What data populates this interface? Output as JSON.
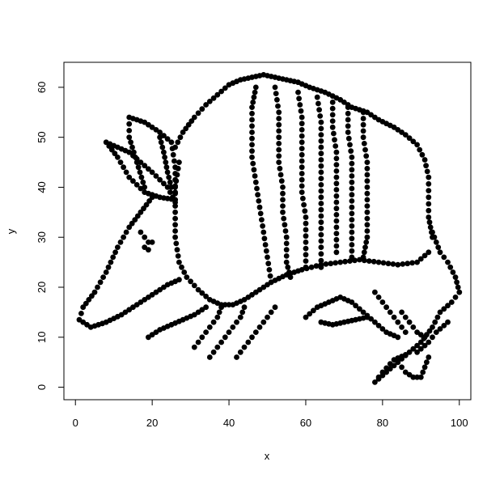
{
  "chart_data": {
    "type": "scatter",
    "title": "",
    "xlabel": "x",
    "ylabel": "y",
    "xlim": [
      -3,
      103
    ],
    "ylim": [
      -2.5,
      65
    ],
    "xticks": [
      0,
      20,
      40,
      60,
      80,
      100
    ],
    "yticks": [
      0,
      10,
      20,
      30,
      40,
      50,
      60
    ],
    "grid": false,
    "legend": "none",
    "marker_color": "#000000",
    "paths": [
      [
        [
          20,
          38
        ],
        [
          17,
          35
        ],
        [
          14,
          32
        ],
        [
          11,
          28
        ],
        [
          8,
          23
        ],
        [
          5,
          19
        ],
        [
          2,
          16
        ],
        [
          1,
          13.5
        ],
        [
          4,
          12
        ],
        [
          8,
          13
        ],
        [
          12,
          14.5
        ],
        [
          16,
          16.5
        ],
        [
          20,
          18.5
        ],
        [
          24,
          20.5
        ],
        [
          27,
          21.5
        ]
      ],
      [
        [
          26,
          37
        ],
        [
          24,
          40
        ],
        [
          20,
          43
        ],
        [
          17,
          45
        ],
        [
          14,
          47
        ],
        [
          11,
          48
        ],
        [
          8,
          49
        ],
        [
          11,
          46
        ],
        [
          14,
          42
        ],
        [
          18,
          39
        ],
        [
          22,
          38
        ],
        [
          26,
          37.5
        ]
      ],
      [
        [
          18,
          40
        ],
        [
          16,
          45
        ],
        [
          14,
          50
        ],
        [
          14,
          54
        ],
        [
          18,
          53
        ],
        [
          22,
          51
        ],
        [
          25,
          49
        ],
        [
          26,
          44
        ],
        [
          26,
          39
        ]
      ],
      [
        [
          25,
          40
        ],
        [
          24,
          43
        ],
        [
          23,
          47
        ],
        [
          22,
          50
        ]
      ],
      [
        [
          26,
          48
        ],
        [
          28,
          51
        ],
        [
          31,
          54
        ],
        [
          34,
          56.5
        ],
        [
          37,
          58.5
        ],
        [
          40,
          60.5
        ],
        [
          43,
          61.5
        ],
        [
          46,
          62
        ],
        [
          49,
          62.5
        ],
        [
          52,
          62
        ],
        [
          55,
          61.5
        ],
        [
          58,
          61
        ],
        [
          61,
          60
        ],
        [
          65,
          59
        ],
        [
          69,
          57.5
        ],
        [
          72,
          56
        ],
        [
          76,
          55
        ],
        [
          79,
          53.5
        ],
        [
          83,
          52
        ],
        [
          86,
          50.5
        ],
        [
          89,
          48.5
        ],
        [
          91,
          45.5
        ],
        [
          92,
          42
        ],
        [
          92,
          38
        ],
        [
          92,
          34
        ],
        [
          93,
          30
        ]
      ],
      [
        [
          27,
          45
        ],
        [
          26,
          40
        ],
        [
          26,
          35
        ],
        [
          26,
          30
        ],
        [
          27,
          25
        ],
        [
          29,
          22
        ],
        [
          32,
          19.5
        ],
        [
          35,
          17.5
        ],
        [
          38,
          16.5
        ],
        [
          41,
          16.5
        ],
        [
          44,
          17.5
        ],
        [
          47,
          19
        ],
        [
          51,
          21
        ],
        [
          55,
          22.5
        ],
        [
          59,
          23.5
        ],
        [
          64,
          24.5
        ],
        [
          69,
          25
        ],
        [
          74,
          25.5
        ],
        [
          79,
          25
        ],
        [
          84,
          24.5
        ],
        [
          89,
          25
        ],
        [
          92,
          27
        ]
      ],
      [
        [
          47,
          60
        ],
        [
          46,
          56
        ],
        [
          46,
          51
        ],
        [
          46,
          46
        ],
        [
          47,
          41
        ],
        [
          48,
          36
        ],
        [
          49,
          31
        ],
        [
          50,
          26
        ],
        [
          51,
          21
        ]
      ],
      [
        [
          52,
          60
        ],
        [
          53,
          55
        ],
        [
          53,
          50
        ],
        [
          53,
          45
        ],
        [
          54,
          40
        ],
        [
          54,
          35
        ],
        [
          55,
          30
        ],
        [
          55,
          25
        ],
        [
          56,
          22
        ]
      ],
      [
        [
          58,
          59
        ],
        [
          59,
          54
        ],
        [
          59,
          49
        ],
        [
          59,
          44
        ],
        [
          59,
          39
        ],
        [
          60,
          34
        ],
        [
          60,
          29
        ],
        [
          60,
          24
        ]
      ],
      [
        [
          63,
          58
        ],
        [
          64,
          53
        ],
        [
          64,
          48
        ],
        [
          64,
          43
        ],
        [
          64,
          38
        ],
        [
          64,
          33
        ],
        [
          64,
          28
        ],
        [
          64,
          24
        ]
      ],
      [
        [
          67,
          57
        ],
        [
          67,
          52
        ],
        [
          68,
          47
        ],
        [
          68,
          42
        ],
        [
          68,
          37
        ],
        [
          68,
          32
        ],
        [
          68,
          27
        ]
      ],
      [
        [
          71,
          56
        ],
        [
          71,
          51
        ],
        [
          72,
          46
        ],
        [
          72,
          41
        ],
        [
          72,
          36
        ],
        [
          72,
          31
        ],
        [
          72,
          26
        ]
      ],
      [
        [
          75,
          55
        ],
        [
          75,
          50
        ],
        [
          76,
          45
        ],
        [
          76,
          40
        ],
        [
          76,
          35
        ],
        [
          76,
          30
        ],
        [
          75,
          26
        ]
      ],
      [
        [
          93,
          31
        ],
        [
          95,
          27
        ],
        [
          97,
          25
        ],
        [
          99,
          22
        ],
        [
          100,
          19
        ],
        [
          98,
          17
        ],
        [
          95,
          15
        ],
        [
          93,
          12
        ],
        [
          90,
          9
        ],
        [
          87,
          7
        ],
        [
          84,
          5
        ],
        [
          81,
          3
        ],
        [
          78,
          1
        ],
        [
          80,
          3
        ],
        [
          83,
          5.5
        ],
        [
          86,
          6.5
        ]
      ],
      [
        [
          97,
          13
        ],
        [
          94,
          11
        ],
        [
          92,
          9
        ],
        [
          89,
          7
        ]
      ],
      [
        [
          19,
          10
        ],
        [
          22,
          11.5
        ],
        [
          25,
          12.5
        ],
        [
          28,
          13.5
        ],
        [
          31,
          14.5
        ],
        [
          34,
          16
        ]
      ],
      [
        [
          31,
          8
        ],
        [
          33,
          10
        ],
        [
          35,
          12
        ],
        [
          37,
          14
        ],
        [
          38,
          16
        ]
      ],
      [
        [
          35,
          6
        ],
        [
          37,
          8
        ],
        [
          39,
          10
        ],
        [
          41,
          12
        ],
        [
          43,
          14
        ],
        [
          44,
          16
        ]
      ],
      [
        [
          42,
          6
        ],
        [
          44,
          8
        ],
        [
          46,
          10
        ],
        [
          48,
          12
        ],
        [
          50,
          14
        ],
        [
          52,
          16
        ]
      ],
      [
        [
          60,
          14
        ],
        [
          63,
          16
        ],
        [
          66,
          17
        ],
        [
          69,
          18
        ],
        [
          72,
          17
        ],
        [
          75,
          15
        ],
        [
          78,
          13
        ],
        [
          81,
          11
        ],
        [
          84,
          10
        ]
      ],
      [
        [
          64,
          13
        ],
        [
          67,
          12.5
        ],
        [
          70,
          13
        ],
        [
          73,
          13.5
        ],
        [
          76,
          14
        ]
      ],
      [
        [
          78,
          19
        ],
        [
          80,
          17
        ],
        [
          82,
          15
        ],
        [
          84,
          13
        ],
        [
          86,
          11
        ]
      ],
      [
        [
          85,
          15
        ],
        [
          87,
          13
        ],
        [
          89,
          11
        ],
        [
          91,
          10
        ]
      ],
      [
        [
          84,
          5
        ],
        [
          86,
          3
        ],
        [
          88,
          2
        ],
        [
          90,
          2
        ],
        [
          91,
          4
        ],
        [
          92,
          6
        ]
      ]
    ],
    "points": [
      [
        18,
        30
      ],
      [
        19,
        29
      ],
      [
        18,
        28
      ],
      [
        19,
        27.5
      ],
      [
        20,
        29
      ],
      [
        17,
        31
      ]
    ]
  }
}
